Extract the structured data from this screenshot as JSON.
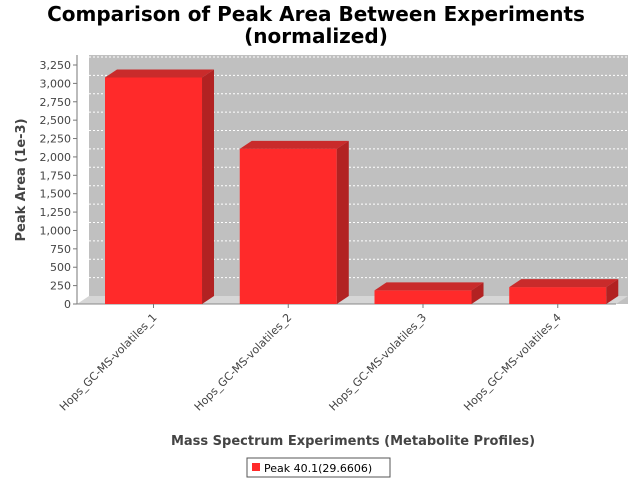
{
  "chart_data": {
    "type": "bar",
    "title": "Comparison of Peak Area Between Experiments",
    "subtitle": "(normalized)",
    "xlabel": "Mass Spectrum Experiments (Metabolite Profiles)",
    "ylabel": "Peak Area (1e-3)",
    "categories": [
      "Hops_GC-MS-volatiles_1",
      "Hops_GC-MS-volatiles_2",
      "Hops_GC-MS-volatiles_3",
      "Hops_GC-MS-volatiles_4"
    ],
    "series": [
      {
        "name": "Peak 40.1(29.6606)",
        "values": [
          3080,
          2110,
          185,
          230
        ],
        "color": "#ff2a2a"
      }
    ],
    "ylim": [
      0,
      3250
    ],
    "yticks": [
      "0",
      "250",
      "500",
      "750",
      "1,000",
      "1,250",
      "1,500",
      "1,750",
      "2,000",
      "2,250",
      "2,500",
      "2,750",
      "3,000",
      "3,250"
    ],
    "grid": true,
    "legend_position": "bottom",
    "plot_background": "#c0c0c0"
  }
}
